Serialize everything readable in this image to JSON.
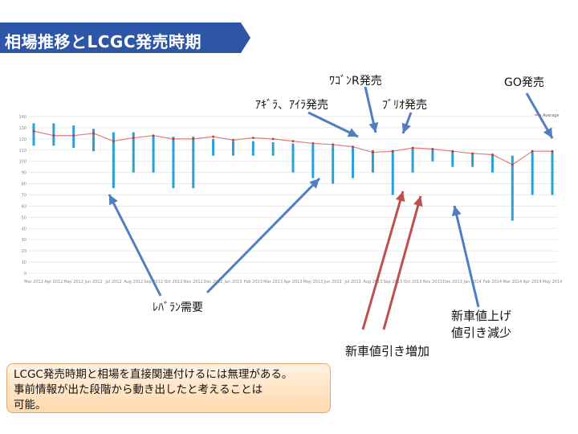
{
  "title": "相場推移とLCGC発売時期",
  "colors": {
    "banner": "#2e56a8",
    "bar": "#2a9fd8",
    "line": "#e27b7b",
    "arrow_blue": "#4f7fc2",
    "arrow_red": "#c0504d"
  },
  "annotations": {
    "wagon_r": "ﾜｺﾞﾝR発売",
    "go": "GO発売",
    "agya": "ｱｷﾞﾗ、ｱｲﾗ発売",
    "brio": "ﾌﾞﾘｵ発売",
    "lebaran": "ﾚﾊﾞﾗﾝ需要",
    "price_up_1": "新車値上げ",
    "price_up_2": "値引き減少",
    "discount_up": "新車値引き増加"
  },
  "note": {
    "line1": "LCGC発売時期と相場を直接関連付けるには無理がある。",
    "line2": "事前情報が出た段階から動き出したと考えることは",
    "line3": "可能。"
  },
  "chart_data": {
    "type": "line",
    "legend_label": "Average",
    "legend_position": "top-right",
    "ylim": [
      0,
      140
    ],
    "y_ticks": [
      0,
      10,
      20,
      30,
      40,
      50,
      60,
      70,
      80,
      90,
      100,
      110,
      120,
      130,
      140
    ],
    "grid": true,
    "x": [
      "Mar 2012",
      "Apr 2012",
      "May 2012",
      "Jun 2012",
      "Jul 2012",
      "Aug 2012",
      "Sep 2012",
      "Oct 2012",
      "Nov 2012",
      "Dec 2012",
      "Jan 2013",
      "Feb 2013",
      "Mar 2013",
      "Apr 2013",
      "May 2013",
      "Jun 2013",
      "Jul 2013",
      "Aug 2013",
      "Sep 2013",
      "Oct 2013",
      "Nov 2013",
      "Dec 2013",
      "Jan 2014",
      "Feb 2014",
      "Mar 2014",
      "Apr 2014",
      "May 2014"
    ],
    "tick_labels": [
      "Mar 2012",
      "Apr 2012",
      "May 2012",
      "Jun 2012",
      "Jul 2012",
      "Aug 2012",
      "Sep 2012",
      "Oct 2012",
      "Nov 2012",
      "Dec 2012",
      "Jan 2013",
      "Feb 2013",
      "Mar 2013",
      "Apr 2013",
      "May 2013",
      "Jun 2013",
      "Jul 2013",
      "Aug 2013",
      "Sep 2013",
      "Oct 2013",
      "Nov 2013",
      "Dec 2013",
      "Jan 2014",
      "Feb 2014",
      "Mar 2014",
      "Apr 2014",
      "May 2014"
    ],
    "series": [
      {
        "name": "Average",
        "type": "line",
        "values": [
          127,
          123,
          123,
          125,
          118,
          121,
          123,
          120,
          120,
          122,
          119,
          121,
          120,
          118,
          116,
          115,
          113,
          108,
          109,
          112,
          111,
          109,
          107,
          106,
          97,
          109,
          109
        ]
      },
      {
        "type": "range",
        "high": [
          134,
          134,
          132,
          129,
          126,
          126,
          123,
          122,
          122,
          120,
          118,
          118,
          117,
          116,
          115,
          114,
          113,
          110,
          110,
          112,
          111,
          109,
          107,
          106,
          105,
          109,
          109
        ],
        "low": [
          114,
          114,
          112,
          109,
          76,
          90,
          90,
          76,
          76,
          105,
          105,
          105,
          105,
          90,
          85,
          80,
          85,
          90,
          70,
          90,
          100,
          95,
          95,
          90,
          47,
          70,
          70
        ]
      }
    ]
  }
}
